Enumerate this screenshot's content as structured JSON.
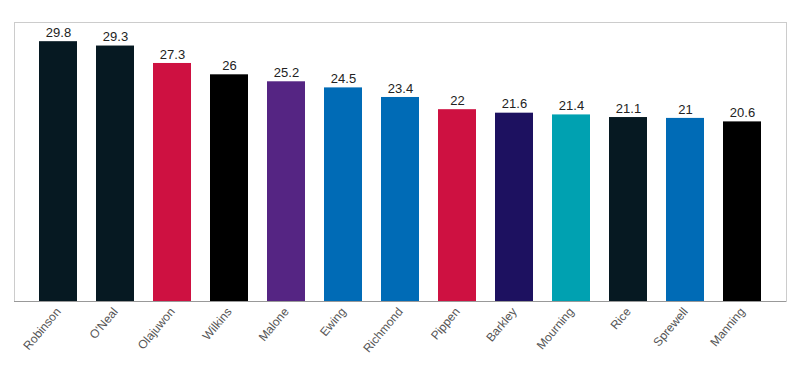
{
  "chart_data": {
    "type": "bar",
    "categories": [
      "Robinson",
      "O'Neal",
      "Olajuwon",
      "Wilkins",
      "Malone",
      "Ewing",
      "Richmond",
      "Pippen",
      "Barkley",
      "Mourning",
      "Rice",
      "Sprewell",
      "Manning"
    ],
    "values": [
      29.8,
      29.3,
      27.3,
      26,
      25.2,
      24.5,
      23.4,
      22,
      21.6,
      21.4,
      21.1,
      21,
      20.6
    ],
    "colors": [
      "#061922",
      "#061922",
      "#ce1141",
      "#000000",
      "#552583",
      "#006bb6",
      "#006bb6",
      "#ce1141",
      "#1d1160",
      "#00a1b1",
      "#061922",
      "#006bb6",
      "#000000"
    ],
    "ylim": [
      0,
      32
    ],
    "yticks": [],
    "data_labels": true,
    "tick_labels": "x",
    "grid": false
  }
}
